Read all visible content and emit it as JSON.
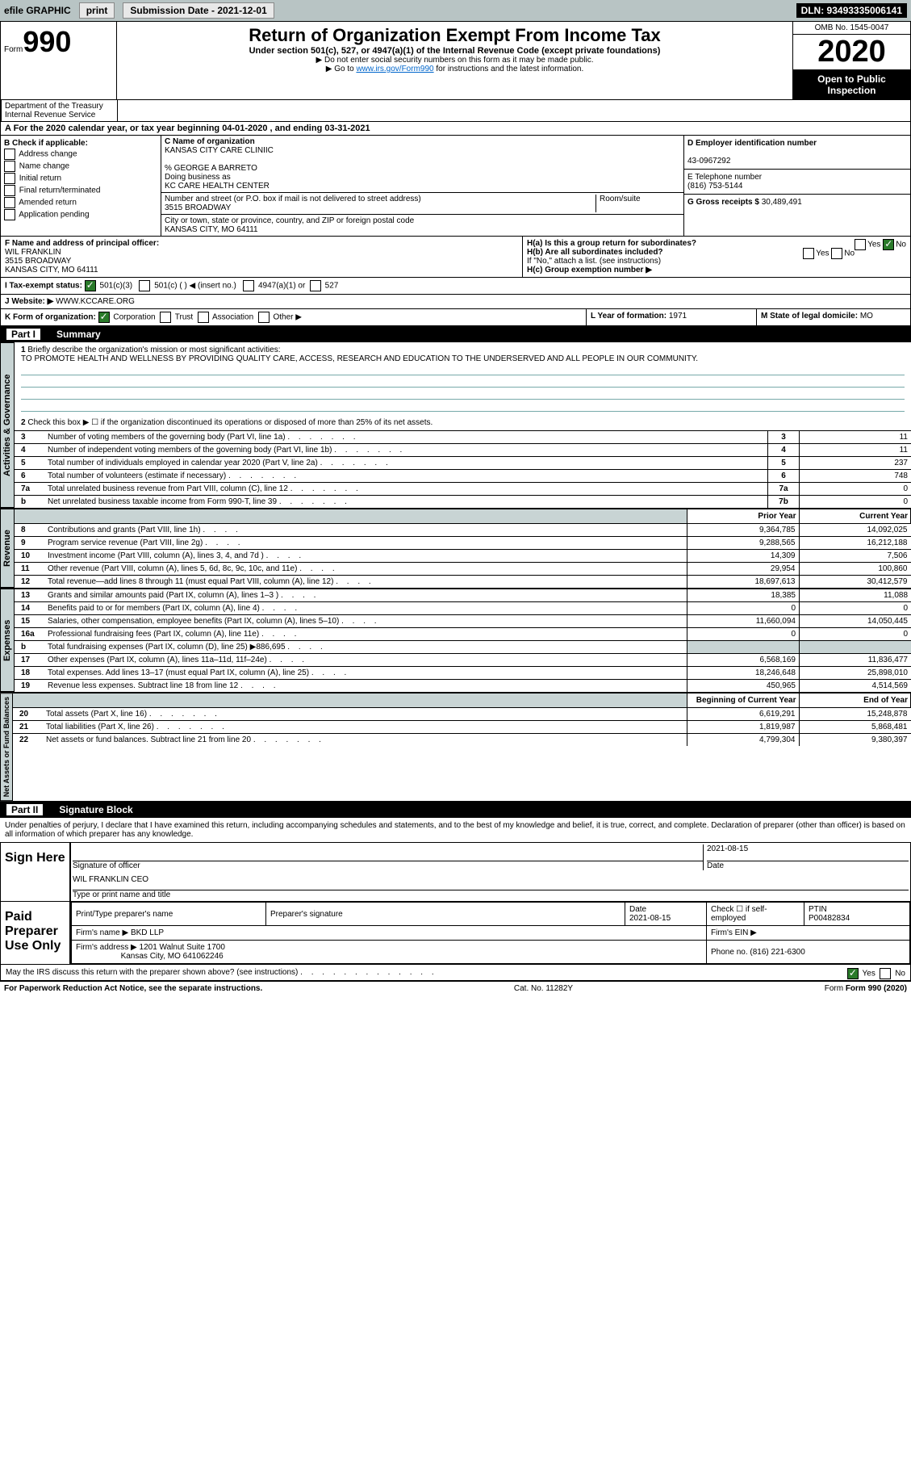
{
  "topbar": {
    "efile": "efile GRAPHIC",
    "print": "print",
    "sub_label": "Submission Date - 2021-12-01",
    "dln": "DLN: 93493335006141"
  },
  "header": {
    "form_label": "Form",
    "form_number": "990",
    "dept1": "Department of the Treasury",
    "dept2": "Internal Revenue Service",
    "title": "Return of Organization Exempt From Income Tax",
    "subtitle": "Under section 501(c), 527, or 4947(a)(1) of the Internal Revenue Code (except private foundations)",
    "inst1": "▶ Do not enter social security numbers on this form as it may be made public.",
    "inst2_pre": "▶ Go to ",
    "inst2_link": "www.irs.gov/Form990",
    "inst2_post": " for instructions and the latest information.",
    "omb": "OMB No. 1545-0047",
    "year": "2020",
    "open": "Open to Public Inspection"
  },
  "section_a": "A For the 2020 calendar year, or tax year beginning 04-01-2020   , and ending 03-31-2021",
  "box_b": {
    "title": "B Check if applicable:",
    "opts": [
      "Address change",
      "Name change",
      "Initial return",
      "Final return/terminated",
      "Amended return",
      "Application pending"
    ]
  },
  "box_c": {
    "label": "C Name of organization",
    "name": "KANSAS CITY CARE CLINIIC",
    "care_of": "% GEORGE A BARRETO",
    "dba_label": "Doing business as",
    "dba": "KC CARE HEALTH CENTER",
    "addr_label": "Number and street (or P.O. box if mail is not delivered to street address)",
    "room_label": "Room/suite",
    "addr": "3515 BROADWAY",
    "city_label": "City or town, state or province, country, and ZIP or foreign postal code",
    "city": "KANSAS CITY, MO  64111"
  },
  "box_d": {
    "label": "D Employer identification number",
    "val": "43-0967292"
  },
  "box_e": {
    "label": "E Telephone number",
    "val": "(816) 753-5144"
  },
  "box_g": {
    "label": "G Gross receipts $",
    "val": "30,489,491"
  },
  "box_f": {
    "label": "F Name and address of principal officer:",
    "name": "WIL FRANKLIN",
    "addr": "3515 BROADWAY",
    "city": "KANSAS CITY, MO  64111"
  },
  "box_h": {
    "a": "H(a)  Is this a group return for subordinates?",
    "b": "H(b)  Are all subordinates included?",
    "note": "If \"No,\" attach a list. (see instructions)",
    "c": "H(c)  Group exemption number ▶",
    "yes": "Yes",
    "no": "No"
  },
  "box_i": {
    "label": "I  Tax-exempt status:",
    "opts": [
      "501(c)(3)",
      "501(c) (  ) ◀ (insert no.)",
      "4947(a)(1) or",
      "527"
    ]
  },
  "box_j": {
    "label": "J  Website: ▶",
    "val": "WWW.KCCARE.ORG"
  },
  "box_k": {
    "label": "K Form of organization:",
    "opts": [
      "Corporation",
      "Trust",
      "Association",
      "Other ▶"
    ]
  },
  "box_l": {
    "label": "L Year of formation:",
    "val": "1971"
  },
  "box_m": {
    "label": "M State of legal domicile:",
    "val": "MO"
  },
  "part1": {
    "num": "Part I",
    "title": "Summary"
  },
  "summary": {
    "line1_label": "Briefly describe the organization's mission or most significant activities:",
    "mission": "TO PROMOTE HEALTH AND WELLNESS BY PROVIDING QUALITY CARE, ACCESS, RESEARCH AND EDUCATION TO THE UNDERSERVED AND ALL PEOPLE IN OUR COMMUNITY.",
    "line2": "Check this box ▶ ☐  if the organization discontinued its operations or disposed of more than 25% of its net assets.",
    "rows_gov": [
      {
        "n": "3",
        "t": "Number of voting members of the governing body (Part VI, line 1a)",
        "box": "3",
        "v": "11"
      },
      {
        "n": "4",
        "t": "Number of independent voting members of the governing body (Part VI, line 1b)",
        "box": "4",
        "v": "11"
      },
      {
        "n": "5",
        "t": "Total number of individuals employed in calendar year 2020 (Part V, line 2a)",
        "box": "5",
        "v": "237"
      },
      {
        "n": "6",
        "t": "Total number of volunteers (estimate if necessary)",
        "box": "6",
        "v": "748"
      },
      {
        "n": "7a",
        "t": "Total unrelated business revenue from Part VIII, column (C), line 12",
        "box": "7a",
        "v": "0"
      },
      {
        "n": "b",
        "t": "Net unrelated business taxable income from Form 990-T, line 39",
        "box": "7b",
        "v": "0"
      }
    ],
    "col_prior": "Prior Year",
    "col_current": "Current Year",
    "rows_rev": [
      {
        "n": "8",
        "t": "Contributions and grants (Part VIII, line 1h)",
        "p": "9,364,785",
        "c": "14,092,025"
      },
      {
        "n": "9",
        "t": "Program service revenue (Part VIII, line 2g)",
        "p": "9,288,565",
        "c": "16,212,188"
      },
      {
        "n": "10",
        "t": "Investment income (Part VIII, column (A), lines 3, 4, and 7d )",
        "p": "14,309",
        "c": "7,506"
      },
      {
        "n": "11",
        "t": "Other revenue (Part VIII, column (A), lines 5, 6d, 8c, 9c, 10c, and 11e)",
        "p": "29,954",
        "c": "100,860"
      },
      {
        "n": "12",
        "t": "Total revenue—add lines 8 through 11 (must equal Part VIII, column (A), line 12)",
        "p": "18,697,613",
        "c": "30,412,579"
      }
    ],
    "rows_exp": [
      {
        "n": "13",
        "t": "Grants and similar amounts paid (Part IX, column (A), lines 1–3 )",
        "p": "18,385",
        "c": "11,088"
      },
      {
        "n": "14",
        "t": "Benefits paid to or for members (Part IX, column (A), line 4)",
        "p": "0",
        "c": "0"
      },
      {
        "n": "15",
        "t": "Salaries, other compensation, employee benefits (Part IX, column (A), lines 5–10)",
        "p": "11,660,094",
        "c": "14,050,445"
      },
      {
        "n": "16a",
        "t": "Professional fundraising fees (Part IX, column (A), line 11e)",
        "p": "0",
        "c": "0"
      },
      {
        "n": "b",
        "t": "Total fundraising expenses (Part IX, column (D), line 25) ▶886,695",
        "p": "",
        "c": "",
        "shade": true
      },
      {
        "n": "17",
        "t": "Other expenses (Part IX, column (A), lines 11a–11d, 11f–24e)",
        "p": "6,568,169",
        "c": "11,836,477"
      },
      {
        "n": "18",
        "t": "Total expenses. Add lines 13–17 (must equal Part IX, column (A), line 25)",
        "p": "18,246,648",
        "c": "25,898,010"
      },
      {
        "n": "19",
        "t": "Revenue less expenses. Subtract line 18 from line 12",
        "p": "450,965",
        "c": "4,514,569"
      }
    ],
    "col_begin": "Beginning of Current Year",
    "col_end": "End of Year",
    "rows_net": [
      {
        "n": "20",
        "t": "Total assets (Part X, line 16)",
        "p": "6,619,291",
        "c": "15,248,878"
      },
      {
        "n": "21",
        "t": "Total liabilities (Part X, line 26)",
        "p": "1,819,987",
        "c": "5,868,481"
      },
      {
        "n": "22",
        "t": "Net assets or fund balances. Subtract line 21 from line 20",
        "p": "4,799,304",
        "c": "9,380,397"
      }
    ],
    "side_gov": "Activities & Governance",
    "side_rev": "Revenue",
    "side_exp": "Expenses",
    "side_net": "Net Assets or Fund Balances"
  },
  "part2": {
    "num": "Part II",
    "title": "Signature Block"
  },
  "sig": {
    "declaration": "Under penalties of perjury, I declare that I have examined this return, including accompanying schedules and statements, and to the best of my knowledge and belief, it is true, correct, and complete. Declaration of preparer (other than officer) is based on all information of which preparer has any knowledge.",
    "sign_here": "Sign Here",
    "sig_officer": "Signature of officer",
    "date1": "2021-08-15",
    "date_label": "Date",
    "name_title": "WIL FRANKLIN  CEO",
    "name_label": "Type or print name and title",
    "paid": "Paid Preparer Use Only",
    "prep_name_label": "Print/Type preparer's name",
    "prep_sig_label": "Preparer's signature",
    "prep_date_label": "Date",
    "prep_date": "2021-08-15",
    "check_self": "Check ☐ if self-employed",
    "ptin_label": "PTIN",
    "ptin": "P00482834",
    "firm_name_label": "Firm's name   ▶",
    "firm_name": "BKD LLP",
    "firm_ein_label": "Firm's EIN ▶",
    "firm_addr_label": "Firm's address ▶",
    "firm_addr": "1201 Walnut Suite 1700",
    "firm_city": "Kansas City, MO  641062246",
    "phone_label": "Phone no.",
    "phone": "(816) 221-6300",
    "discuss": "May the IRS discuss this return with the preparer shown above? (see instructions)",
    "yes": "Yes",
    "no": "No"
  },
  "footer": {
    "paperwork": "For Paperwork Reduction Act Notice, see the separate instructions.",
    "cat": "Cat. No. 11282Y",
    "form": "Form 990 (2020)"
  }
}
